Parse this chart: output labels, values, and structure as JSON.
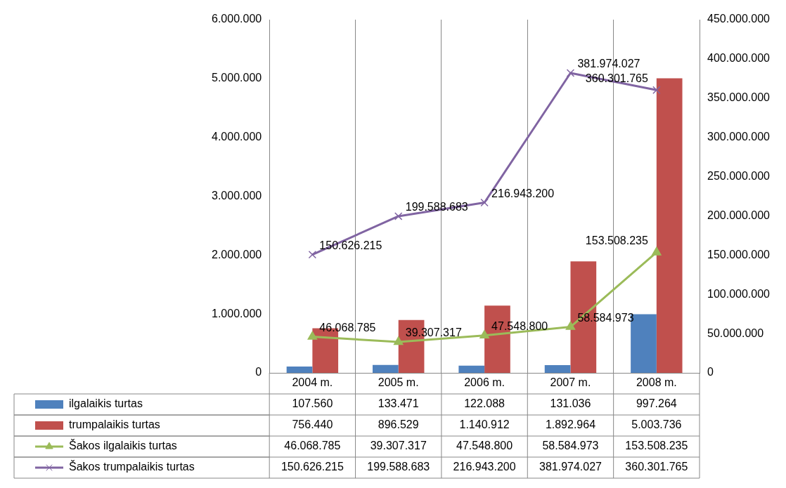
{
  "chart_data": {
    "type": "bar",
    "categories": [
      "2004 m.",
      "2005 m.",
      "2006 m.",
      "2007 m.",
      "2008 m."
    ],
    "series": [
      {
        "name": "ilgalaikis turtas",
        "color": "#4f81bd",
        "values": [
          107560,
          133471,
          122088,
          131036,
          997264
        ],
        "value_labels": [
          "107.560",
          "133.471",
          "122.088",
          "131.036",
          "997.264"
        ]
      },
      {
        "name": "trumpalaikis turtas",
        "color": "#c0504d",
        "values": [
          756440,
          896529,
          1140912,
          1892964,
          5003736
        ],
        "value_labels": [
          "756.440",
          "896.529",
          "1.140.912",
          "1.892.964",
          "5.003.736"
        ]
      },
      {
        "name": "Šakos ilgalaikis turtas",
        "type": "line",
        "axis": "y2",
        "marker": "triangle",
        "color": "#9bbb59",
        "values": [
          46068785,
          39307317,
          47548800,
          58584973,
          153508235
        ],
        "value_labels": [
          "46.068.785",
          "39.307.317",
          "47.548.800",
          "58.584.973",
          "153.508.235"
        ]
      },
      {
        "name": "Šakos trumpalaikis turtas",
        "type": "line",
        "axis": "y2",
        "marker": "cross",
        "color": "#8064a2",
        "values": [
          150626215,
          199588683,
          216943200,
          381974027,
          360301765
        ],
        "value_labels": [
          "150.626.215",
          "199.588.683",
          "216.943.200",
          "381.974.027",
          "360.301.765"
        ]
      }
    ],
    "ylim": [
      0,
      6000000
    ],
    "yticks": [
      0,
      {
        "value": 1000000,
        "label": "1.000.000"
      },
      {
        "value": 2000000,
        "label": "2.000.000"
      },
      {
        "value": 3000000,
        "label": "3.000.000"
      },
      {
        "value": 4000000,
        "label": "4.000.000"
      },
      {
        "value": 5000000,
        "label": "5.000.000"
      },
      {
        "value": 6000000,
        "label": "6.000.000"
      }
    ],
    "y2lim": [
      0,
      450000000
    ],
    "y2ticks": [
      0,
      {
        "value": 50000000,
        "label": "50.000.000"
      },
      {
        "value": 100000000,
        "label": "100.000.000"
      },
      {
        "value": 150000000,
        "label": "150.000.000"
      },
      {
        "value": 200000000,
        "label": "200.000.000"
      },
      {
        "value": 250000000,
        "label": "250.000.000"
      },
      {
        "value": 300000000,
        "label": "300.000.000"
      },
      {
        "value": 350000000,
        "label": "350.000.000"
      },
      {
        "value": 400000000,
        "label": "400.000.000"
      },
      {
        "value": 450000000,
        "label": "450.000.000"
      }
    ],
    "grid": "x",
    "legend": "bottom"
  }
}
